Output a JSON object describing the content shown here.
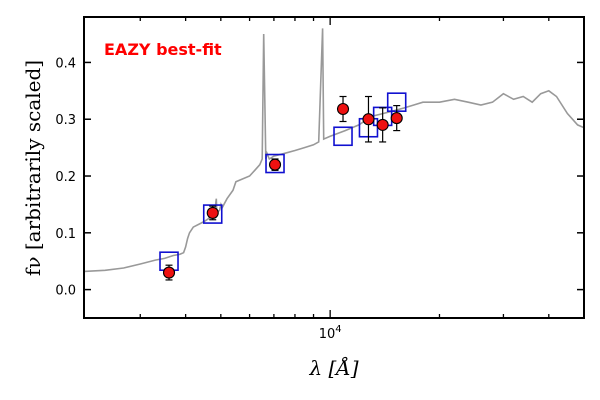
{
  "chart_data": {
    "type": "scatter",
    "title": "",
    "xlabel": "λ [Å]",
    "ylabel": "fν [arbitrarily scaled]",
    "x_scale": "log",
    "xlim": [
      2100,
      50000
    ],
    "ylim": [
      -0.05,
      0.48
    ],
    "y_ticks": [
      0.0,
      0.1,
      0.2,
      0.3,
      0.4
    ],
    "y_tick_labels": [
      "0.0",
      "0.1",
      "0.2",
      "0.3",
      "0.4"
    ],
    "x_ticks_major": [
      10000
    ],
    "x_tick_labels": [
      "10^4"
    ],
    "grid": false,
    "annotation": {
      "text": "EAZY best-fit",
      "color": "#ff0000"
    },
    "colors": {
      "sed": "#999999",
      "model_box": "#1010d0",
      "observed_fill": "#ee1111",
      "observed_edge": "#000000"
    },
    "series": [
      {
        "kind": "line",
        "x": [
          2100,
          2400,
          2700,
          3000,
          3300,
          3500,
          3700,
          3850,
          3950,
          4000,
          4050,
          4100,
          4200,
          4500,
          4700,
          4800,
          4860,
          4870,
          4880,
          4960,
          5007,
          5050,
          5200,
          5400,
          5500,
          6000,
          6200,
          6400,
          6500,
          6563,
          6650,
          6700,
          6800,
          7000,
          7500,
          8000,
          8500,
          9000,
          9300,
          9532,
          9600,
          10000,
          11000,
          12000,
          13000,
          14000,
          15000,
          16000,
          17000,
          18000,
          20000,
          22000,
          24000,
          26000,
          28000,
          30000,
          32000,
          34000,
          36000,
          38000,
          40000,
          42000,
          45000,
          48000,
          50000
        ],
        "y": [
          0.032,
          0.034,
          0.038,
          0.045,
          0.052,
          0.055,
          0.06,
          0.062,
          0.065,
          0.075,
          0.09,
          0.1,
          0.11,
          0.12,
          0.128,
          0.13,
          0.16,
          0.14,
          0.135,
          0.14,
          0.15,
          0.145,
          0.16,
          0.175,
          0.19,
          0.2,
          0.21,
          0.22,
          0.23,
          0.45,
          0.23,
          0.24,
          0.23,
          0.235,
          0.24,
          0.245,
          0.25,
          0.255,
          0.26,
          0.46,
          0.265,
          0.27,
          0.28,
          0.29,
          0.305,
          0.31,
          0.315,
          0.32,
          0.325,
          0.33,
          0.33,
          0.335,
          0.33,
          0.325,
          0.33,
          0.345,
          0.335,
          0.34,
          0.33,
          0.345,
          0.35,
          0.34,
          0.31,
          0.29,
          0.285
        ]
      },
      {
        "kind": "model_photometry",
        "x": [
          3600,
          4750,
          7050,
          10850,
          12750,
          13950,
          15250
        ],
        "y": [
          0.05,
          0.133,
          0.222,
          0.27,
          0.285,
          0.305,
          0.33
        ]
      },
      {
        "kind": "observed",
        "x": [
          3600,
          4750,
          7050,
          10850,
          12750,
          13950,
          15250
        ],
        "y": [
          0.03,
          0.135,
          0.22,
          0.318,
          0.3,
          0.29,
          0.302
        ],
        "err": [
          0.013,
          0.012,
          0.01,
          0.022,
          0.04,
          0.03,
          0.022
        ]
      }
    ]
  }
}
